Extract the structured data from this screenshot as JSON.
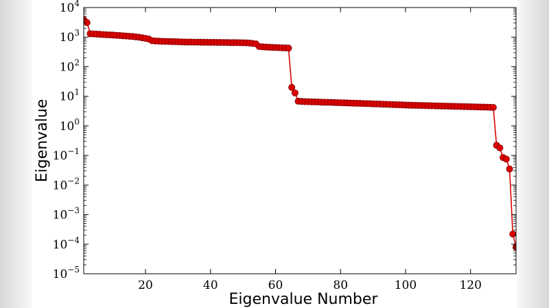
{
  "chart_data": {
    "type": "line",
    "xlabel": "Eigenvalue Number",
    "ylabel": "Eigenvalue",
    "xlim": [
      1,
      134
    ],
    "ylim": [
      1e-05,
      10000.0
    ],
    "yscale": "log",
    "grid": false,
    "x_ticks": [
      20,
      40,
      60,
      80,
      100,
      120
    ],
    "y_ticks": [
      {
        "value": 1e-05,
        "base": "10",
        "exp": "−5"
      },
      {
        "value": 0.0001,
        "base": "10",
        "exp": "−4"
      },
      {
        "value": 0.001,
        "base": "10",
        "exp": "−3"
      },
      {
        "value": 0.01,
        "base": "10",
        "exp": "−2"
      },
      {
        "value": 0.1,
        "base": "10",
        "exp": "−1"
      },
      {
        "value": 1,
        "base": "10",
        "exp": "0"
      },
      {
        "value": 10,
        "base": "10",
        "exp": "1"
      },
      {
        "value": 100,
        "base": "10",
        "exp": "2"
      },
      {
        "value": 1000,
        "base": "10",
        "exp": "3"
      },
      {
        "value": 10000,
        "base": "10",
        "exp": "4"
      }
    ],
    "series_color": "#dd0000",
    "marker_edge_color": "#7a0000",
    "series": [
      {
        "x": [
          1,
          2,
          3,
          4,
          5,
          6,
          7,
          8,
          9,
          10,
          11,
          12,
          13,
          14,
          15,
          16,
          17,
          18,
          19,
          20,
          21,
          22,
          23,
          24,
          25,
          26,
          27,
          28,
          29,
          30,
          31,
          32,
          33,
          34,
          35,
          36,
          37,
          38,
          39,
          40,
          41,
          42,
          43,
          44,
          45,
          46,
          47,
          48,
          49,
          50,
          51,
          52,
          53,
          54,
          55,
          56,
          57,
          58,
          59,
          60,
          61,
          62,
          63,
          64,
          65,
          66,
          67,
          68,
          69,
          70,
          71,
          72,
          73,
          74,
          75,
          76,
          77,
          78,
          79,
          80,
          81,
          82,
          83,
          84,
          85,
          86,
          87,
          88,
          89,
          90,
          91,
          92,
          93,
          94,
          95,
          96,
          97,
          98,
          99,
          100,
          101,
          102,
          103,
          104,
          105,
          106,
          107,
          108,
          109,
          110,
          111,
          112,
          113,
          114,
          115,
          116,
          117,
          118,
          119,
          120,
          121,
          122,
          123,
          124,
          125,
          126,
          127,
          128,
          129,
          130,
          131,
          132,
          133,
          134
        ],
        "y": [
          3900,
          3100,
          1300,
          1280,
          1260,
          1240,
          1220,
          1200,
          1190,
          1170,
          1150,
          1130,
          1110,
          1090,
          1070,
          1050,
          1020,
          990,
          950,
          910,
          860,
          760,
          740,
          730,
          720,
          715,
          710,
          705,
          700,
          695,
          690,
          685,
          680,
          678,
          676,
          674,
          672,
          670,
          668,
          666,
          664,
          662,
          660,
          658,
          656,
          654,
          652,
          650,
          648,
          645,
          640,
          630,
          610,
          590,
          480,
          470,
          462,
          456,
          450,
          445,
          440,
          435,
          430,
          425,
          20,
          13,
          6.8,
          6.7,
          6.6,
          6.55,
          6.5,
          6.45,
          6.4,
          6.35,
          6.3,
          6.25,
          6.2,
          6.15,
          6.1,
          6.05,
          6.0,
          5.95,
          5.9,
          5.85,
          5.8,
          5.75,
          5.7,
          5.65,
          5.6,
          5.55,
          5.5,
          5.45,
          5.4,
          5.35,
          5.3,
          5.25,
          5.2,
          5.15,
          5.1,
          5.05,
          5.0,
          4.97,
          4.94,
          4.91,
          4.88,
          4.85,
          4.82,
          4.79,
          4.76,
          4.73,
          4.7,
          4.67,
          4.64,
          4.61,
          4.58,
          4.55,
          4.52,
          4.49,
          4.46,
          4.43,
          4.4,
          4.37,
          4.34,
          4.31,
          4.28,
          4.25,
          4.2,
          0.22,
          0.18,
          0.085,
          0.075,
          0.035,
          0.00022,
          8e-05
        ]
      }
    ]
  }
}
